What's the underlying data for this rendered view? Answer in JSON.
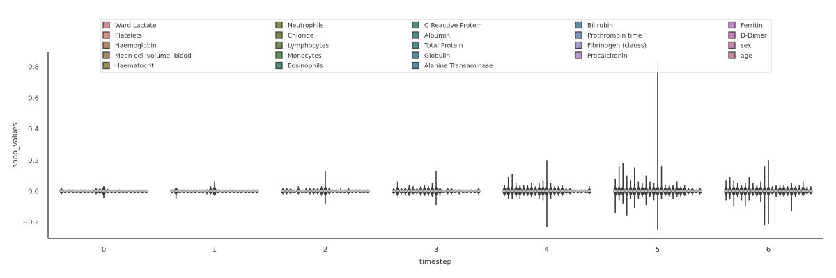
{
  "chart_data": {
    "type": "violin",
    "title": "",
    "xlabel": "timestep",
    "ylabel": "shap_values",
    "categories": [
      "0",
      "1",
      "2",
      "3",
      "4",
      "5",
      "6"
    ],
    "ylim": [
      -0.304,
      0.894
    ],
    "yticks": [
      -0.2,
      0.0,
      0.2,
      0.4,
      0.6,
      0.8
    ],
    "ytick_labels": [
      "−0.2",
      "0.0",
      "0.2",
      "0.4",
      "0.6",
      "0.8"
    ],
    "grid": false,
    "legend_position": "top",
    "violin_color": "#3d3d3d",
    "median_color": "#d9d9d9",
    "series": [
      {
        "name": "Ward Lactate",
        "color": "#d98b9a"
      },
      {
        "name": "Platelets",
        "color": "#d98b7c"
      },
      {
        "name": "Haemoglobin",
        "color": "#c08660"
      },
      {
        "name": "Mean cell volume, blood",
        "color": "#a6885a"
      },
      {
        "name": "Haematocrit",
        "color": "#9e8e52"
      },
      {
        "name": "Neutrophils",
        "color": "#8f8c4e"
      },
      {
        "name": "Chloride",
        "color": "#80884e"
      },
      {
        "name": "Lymphocytes",
        "color": "#6f9050"
      },
      {
        "name": "Monocytes",
        "color": "#56975a"
      },
      {
        "name": "Eosinophils",
        "color": "#4f9170"
      },
      {
        "name": "C-Reactive Protein",
        "color": "#4e8f7b"
      },
      {
        "name": "Albumin",
        "color": "#4d8e84"
      },
      {
        "name": "Total Protein",
        "color": "#4d8c8c"
      },
      {
        "name": "Globulin",
        "color": "#4e8d95"
      },
      {
        "name": "Alanine Transaminase",
        "color": "#5291a6"
      },
      {
        "name": "Bilirubin",
        "color": "#5e8fb0"
      },
      {
        "name": "Prothrombin time",
        "color": "#7d93c8"
      },
      {
        "name": "Fibrinogen (clauss)",
        "color": "#a79bd4"
      },
      {
        "name": "Procalcitonin",
        "color": "#b894d6"
      },
      {
        "name": "Ferritin",
        "color": "#c68bd2"
      },
      {
        "name": "D-Dimer",
        "color": "#cc7fc0"
      },
      {
        "name": "sex",
        "color": "#cc84b0"
      },
      {
        "name": "age",
        "color": "#cf88a0"
      }
    ],
    "ranges": [
      [
        [
          -0.02,
          0.02
        ],
        [
          -0.01,
          0.01
        ],
        [
          -0.01,
          0.01
        ],
        [
          -0.01,
          0.01
        ],
        [
          -0.01,
          0.01
        ],
        [
          -0.01,
          0.01
        ],
        [
          -0.01,
          0.01
        ],
        [
          -0.01,
          0.01
        ],
        [
          -0.01,
          0.01
        ],
        [
          -0.02,
          0.02
        ],
        [
          -0.02,
          0.02
        ],
        [
          -0.045,
          0.035
        ],
        [
          -0.01,
          0.015
        ],
        [
          -0.005,
          0.005
        ],
        [
          -0.005,
          0.005
        ],
        [
          -0.01,
          0.01
        ],
        [
          -0.005,
          0.005
        ],
        [
          -0.005,
          0.005
        ],
        [
          -0.005,
          0.005
        ],
        [
          -0.005,
          0.005
        ],
        [
          -0.005,
          0.005
        ],
        [
          -0.005,
          0.005
        ],
        [
          -0.01,
          0.01
        ]
      ],
      [
        [
          -0.01,
          0.01
        ],
        [
          -0.05,
          0.01
        ],
        [
          -0.01,
          0.01
        ],
        [
          -0.005,
          0.005
        ],
        [
          -0.005,
          0.005
        ],
        [
          -0.005,
          0.005
        ],
        [
          -0.005,
          0.005
        ],
        [
          -0.01,
          0.01
        ],
        [
          -0.01,
          0.01
        ],
        [
          -0.02,
          0.01
        ],
        [
          -0.02,
          0.03
        ],
        [
          -0.03,
          0.06
        ],
        [
          -0.01,
          0.01
        ],
        [
          -0.005,
          0.005
        ],
        [
          -0.005,
          0.005
        ],
        [
          -0.005,
          0.005
        ],
        [
          -0.005,
          0.005
        ],
        [
          -0.005,
          0.005
        ],
        [
          -0.005,
          0.005
        ],
        [
          -0.005,
          0.005
        ],
        [
          -0.005,
          0.005
        ],
        [
          -0.005,
          0.005
        ],
        [
          -0.005,
          0.005
        ]
      ],
      [
        [
          -0.02,
          0.02
        ],
        [
          -0.02,
          0.02
        ],
        [
          -0.02,
          0.02
        ],
        [
          -0.01,
          0.01
        ],
        [
          -0.02,
          0.03
        ],
        [
          -0.01,
          0.01
        ],
        [
          -0.01,
          0.02
        ],
        [
          -0.02,
          0.02
        ],
        [
          -0.02,
          0.02
        ],
        [
          -0.02,
          0.02
        ],
        [
          -0.03,
          0.03
        ],
        [
          -0.08,
          0.13
        ],
        [
          -0.02,
          0.02
        ],
        [
          -0.01,
          0.01
        ],
        [
          -0.01,
          0.01
        ],
        [
          -0.01,
          0.02
        ],
        [
          -0.01,
          0.01
        ],
        [
          -0.02,
          0.02
        ],
        [
          -0.01,
          0.01
        ],
        [
          -0.01,
          0.01
        ],
        [
          -0.01,
          0.01
        ],
        [
          -0.005,
          0.005
        ],
        [
          -0.01,
          0.01
        ]
      ],
      [
        [
          -0.02,
          0.02
        ],
        [
          -0.03,
          0.06
        ],
        [
          -0.02,
          0.02
        ],
        [
          -0.03,
          0.02
        ],
        [
          -0.03,
          0.04
        ],
        [
          -0.02,
          0.03
        ],
        [
          -0.02,
          0.02
        ],
        [
          -0.03,
          0.03
        ],
        [
          -0.03,
          0.04
        ],
        [
          -0.03,
          0.03
        ],
        [
          -0.04,
          0.05
        ],
        [
          -0.09,
          0.13
        ],
        [
          -0.03,
          0.02
        ],
        [
          -0.01,
          0.01
        ],
        [
          -0.02,
          0.02
        ],
        [
          -0.02,
          0.02
        ],
        [
          -0.01,
          0.01
        ],
        [
          -0.02,
          0.01
        ],
        [
          -0.005,
          0.005
        ],
        [
          -0.01,
          0.01
        ],
        [
          -0.01,
          0.01
        ],
        [
          -0.01,
          0.01
        ],
        [
          -0.02,
          0.02
        ]
      ],
      [
        [
          -0.03,
          0.04
        ],
        [
          -0.05,
          0.09
        ],
        [
          -0.05,
          0.11
        ],
        [
          -0.04,
          0.05
        ],
        [
          -0.05,
          0.04
        ],
        [
          -0.03,
          0.04
        ],
        [
          -0.03,
          0.04
        ],
        [
          -0.04,
          0.05
        ],
        [
          -0.03,
          0.03
        ],
        [
          -0.05,
          0.05
        ],
        [
          -0.06,
          0.07
        ],
        [
          -0.23,
          0.2
        ],
        [
          -0.05,
          0.05
        ],
        [
          -0.03,
          0.03
        ],
        [
          -0.03,
          0.03
        ],
        [
          -0.03,
          0.04
        ],
        [
          -0.02,
          0.02
        ],
        [
          -0.02,
          0.02
        ],
        [
          -0.01,
          0.01
        ],
        [
          -0.01,
          0.01
        ],
        [
          -0.01,
          0.01
        ],
        [
          -0.01,
          0.01
        ],
        [
          -0.02,
          0.03
        ]
      ],
      [
        [
          -0.14,
          0.08
        ],
        [
          -0.06,
          0.16
        ],
        [
          -0.08,
          0.18
        ],
        [
          -0.16,
          0.1
        ],
        [
          -0.05,
          0.07
        ],
        [
          -0.11,
          0.15
        ],
        [
          -0.05,
          0.06
        ],
        [
          -0.04,
          0.05
        ],
        [
          -0.09,
          0.1
        ],
        [
          -0.04,
          0.06
        ],
        [
          -0.06,
          0.05
        ],
        [
          -0.25,
          0.84
        ],
        [
          -0.05,
          0.16
        ],
        [
          -0.03,
          0.04
        ],
        [
          -0.04,
          0.04
        ],
        [
          -0.05,
          0.04
        ],
        [
          -0.04,
          0.06
        ],
        [
          -0.04,
          0.03
        ],
        [
          -0.03,
          0.04
        ],
        [
          -0.02,
          0.02
        ],
        [
          -0.03,
          0.02
        ],
        [
          -0.01,
          0.01
        ],
        [
          -0.02,
          0.02
        ]
      ],
      [
        [
          -0.06,
          0.07
        ],
        [
          -0.05,
          0.09
        ],
        [
          -0.1,
          0.07
        ],
        [
          -0.04,
          0.05
        ],
        [
          -0.06,
          0.04
        ],
        [
          -0.1,
          0.05
        ],
        [
          -0.06,
          0.09
        ],
        [
          -0.03,
          0.05
        ],
        [
          -0.04,
          0.04
        ],
        [
          -0.07,
          0.06
        ],
        [
          -0.22,
          0.16
        ],
        [
          -0.21,
          0.2
        ],
        [
          -0.02,
          0.03
        ],
        [
          -0.04,
          0.04
        ],
        [
          -0.03,
          0.04
        ],
        [
          -0.04,
          0.04
        ],
        [
          -0.03,
          0.03
        ],
        [
          -0.13,
          0.05
        ],
        [
          -0.04,
          0.03
        ],
        [
          -0.02,
          0.04
        ],
        [
          -0.03,
          0.06
        ],
        [
          -0.02,
          0.03
        ],
        [
          -0.02,
          0.03
        ]
      ]
    ]
  }
}
